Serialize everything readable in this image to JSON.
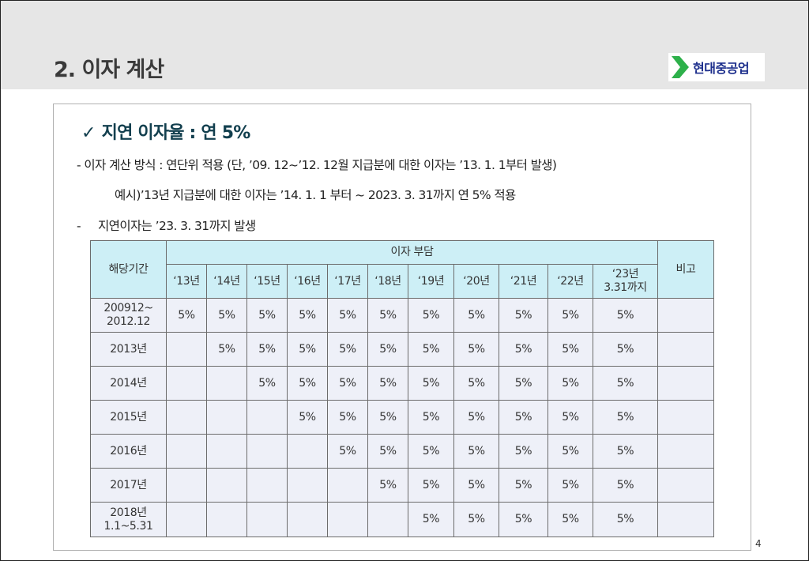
{
  "header": {
    "title": "2. 이자 계산"
  },
  "logo": {
    "text": "현대중공업"
  },
  "content": {
    "check_mark": "✓",
    "heading": "지연 이자율 : 연 5%",
    "line1": "- 이자 계산 방식 : 연단위 적용 (단, ’09. 12~’12. 12월 지급분에 대한 이자는 ’13. 1. 1부터 발생)",
    "line2": "예시)’13년 지급분에 대한 이자는 ’14. 1. 1 부터 ~ 2023. 3. 31까지 연 5% 적용",
    "line3_dash": "-",
    "line3": "지연이자는 ’23. 3. 31까지 발생"
  },
  "table": {
    "period_header": "해당기간",
    "burden_header": "이자 부담",
    "note_header": "비고",
    "years": [
      "‘13년",
      "‘14년",
      "‘15년",
      "‘16년",
      "‘17년",
      "‘18년",
      "‘19년",
      "‘20년",
      "‘21년",
      "‘22년",
      "‘23년\n3.31까지"
    ],
    "rows": [
      {
        "period": "200912~\n2012.12",
        "cells": [
          "5%",
          "5%",
          "5%",
          "5%",
          "5%",
          "5%",
          "5%",
          "5%",
          "5%",
          "5%",
          "5%"
        ]
      },
      {
        "period": "2013년",
        "cells": [
          "",
          "5%",
          "5%",
          "5%",
          "5%",
          "5%",
          "5%",
          "5%",
          "5%",
          "5%",
          "5%"
        ]
      },
      {
        "period": "2014년",
        "cells": [
          "",
          "",
          "5%",
          "5%",
          "5%",
          "5%",
          "5%",
          "5%",
          "5%",
          "5%",
          "5%"
        ]
      },
      {
        "period": "2015년",
        "cells": [
          "",
          "",
          "",
          "5%",
          "5%",
          "5%",
          "5%",
          "5%",
          "5%",
          "5%",
          "5%"
        ]
      },
      {
        "period": "2016년",
        "cells": [
          "",
          "",
          "",
          "",
          "5%",
          "5%",
          "5%",
          "5%",
          "5%",
          "5%",
          "5%"
        ]
      },
      {
        "period": "2017년",
        "cells": [
          "",
          "",
          "",
          "",
          "",
          "5%",
          "5%",
          "5%",
          "5%",
          "5%",
          "5%"
        ]
      },
      {
        "period": "2018년\n1.1~5.31",
        "cells": [
          "",
          "",
          "",
          "",
          "",
          "",
          "5%",
          "5%",
          "5%",
          "5%",
          "5%"
        ]
      }
    ]
  },
  "page_number": "4",
  "colors": {
    "header_band": "#e6e6e6",
    "heading": "#123f4e",
    "table_header_bg": "#cdeff6",
    "table_body_bg": "#eef0f8",
    "logo_mark": "#2db04a"
  }
}
